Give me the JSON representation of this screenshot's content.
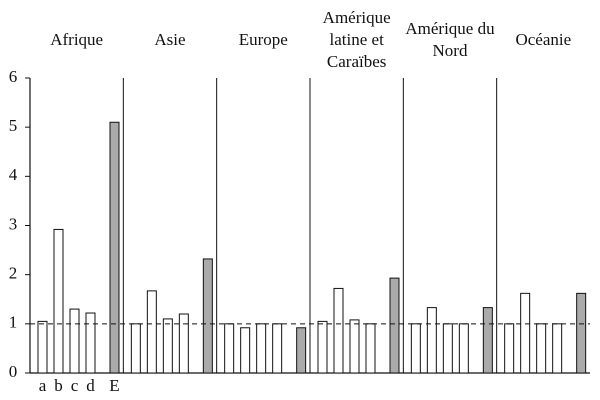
{
  "chart_data": {
    "type": "bar",
    "categories": [
      "Afrique",
      "Asie",
      "Europe",
      "Amérique latine et Caraïbes",
      "Amérique du Nord",
      "Océanie"
    ],
    "series": [
      {
        "name": "a",
        "color": "#ffffff",
        "values": [
          1.05,
          1.0,
          1.0,
          1.05,
          1.0,
          1.0
        ]
      },
      {
        "name": "b",
        "color": "#ffffff",
        "values": [
          2.92,
          1.67,
          0.92,
          1.72,
          1.33,
          1.62
        ]
      },
      {
        "name": "c",
        "color": "#ffffff",
        "values": [
          1.3,
          1.1,
          1.0,
          1.08,
          1.0,
          1.0
        ]
      },
      {
        "name": "d",
        "color": "#ffffff",
        "values": [
          1.22,
          1.2,
          1.0,
          1.0,
          1.0,
          1.0
        ]
      },
      {
        "name": "E",
        "color": "#aaaaaa",
        "values": [
          5.1,
          2.32,
          0.92,
          1.93,
          1.33,
          1.62
        ]
      }
    ],
    "ylim": [
      0,
      6
    ],
    "yticks": [
      0,
      1,
      2,
      3,
      4,
      5,
      6
    ],
    "reference_line": 1
  }
}
